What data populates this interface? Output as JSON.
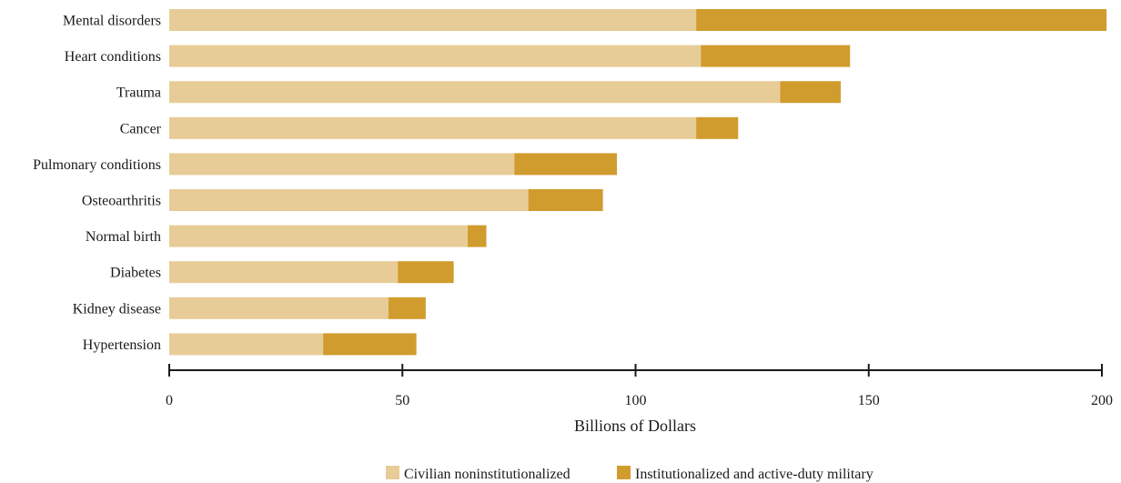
{
  "chart_data": {
    "type": "bar",
    "orientation": "horizontal",
    "stacked": true,
    "categories": [
      "Mental disorders",
      "Heart conditions",
      "Trauma",
      "Cancer",
      "Pulmonary conditions",
      "Osteoarthritis",
      "Normal birth",
      "Diabetes",
      "Kidney disease",
      "Hypertension"
    ],
    "series": [
      {
        "name": "Civilian noninstitutionalized",
        "color": "#e8cc98",
        "values": [
          113,
          114,
          131,
          113,
          74,
          77,
          64,
          49,
          47,
          33
        ]
      },
      {
        "name": "Institutionalized and active-duty military",
        "color": "#d19c2e",
        "values": [
          88,
          32,
          13,
          9,
          22,
          16,
          4,
          12,
          8,
          20
        ]
      }
    ],
    "xlabel": "Billions of Dollars",
    "ylabel": "",
    "title": "",
    "xlim": [
      0,
      200
    ],
    "xticks": [
      0,
      50,
      100,
      150,
      200
    ],
    "grid": false,
    "legend_position": "bottom"
  }
}
